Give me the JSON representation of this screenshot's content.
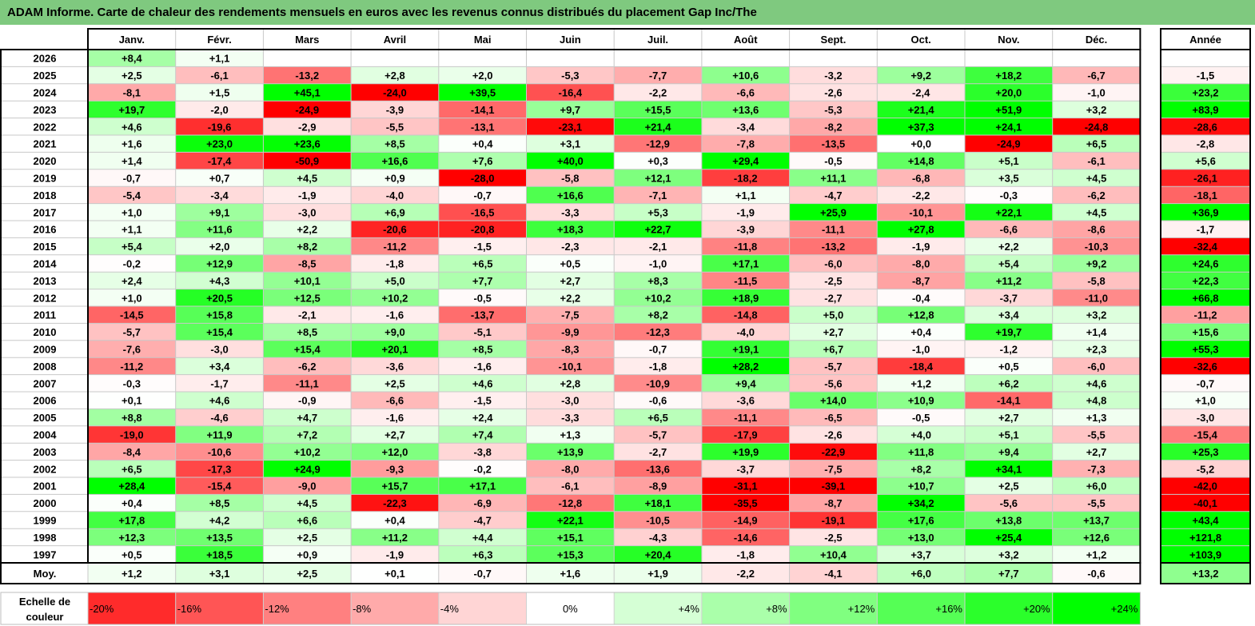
{
  "title": "ADAM Informe. Carte de chaleur des rendements mensuels en euros avec les revenus connus distribués du placement Gap Inc/The",
  "chart_data": {
    "type": "heatmap",
    "title": "ADAM Informe. Carte de chaleur des rendements mensuels en euros avec les revenus connus distribués du placement Gap Inc/The",
    "months": [
      "Janv.",
      "Févr.",
      "Mars",
      "Avril",
      "Mai",
      "Juin",
      "Juil.",
      "Août",
      "Sept.",
      "Oct.",
      "Nov.",
      "Déc."
    ],
    "year_header": "Année",
    "rows": [
      {
        "year": "2026",
        "values": [
          "+8,4",
          "+1,1",
          "",
          "",
          "",
          "",
          "",
          "",
          "",
          "",
          "",
          ""
        ],
        "annual": ""
      },
      {
        "year": "2025",
        "values": [
          "+2,5",
          "-6,1",
          "-13,2",
          "+2,8",
          "+2,0",
          "-5,3",
          "-7,7",
          "+10,6",
          "-3,2",
          "+9,2",
          "+18,2",
          "-6,7"
        ],
        "annual": "-1,5"
      },
      {
        "year": "2024",
        "values": [
          "-8,1",
          "+1,5",
          "+45,1",
          "-24,0",
          "+39,5",
          "-16,4",
          "-2,2",
          "-6,6",
          "-2,6",
          "-2,4",
          "+20,0",
          "-1,0"
        ],
        "annual": "+23,2"
      },
      {
        "year": "2023",
        "values": [
          "+19,7",
          "-2,0",
          "-24,9",
          "-3,9",
          "-14,1",
          "+9,7",
          "+15,5",
          "+13,6",
          "-5,3",
          "+21,4",
          "+51,9",
          "+3,2"
        ],
        "annual": "+83,9"
      },
      {
        "year": "2022",
        "values": [
          "+4,6",
          "-19,6",
          "-2,9",
          "-5,5",
          "-13,1",
          "-23,1",
          "+21,4",
          "-3,4",
          "-8,2",
          "+37,3",
          "+24,1",
          "-24,8"
        ],
        "annual": "-28,6"
      },
      {
        "year": "2021",
        "values": [
          "+1,6",
          "+23,0",
          "+23,6",
          "+8,5",
          "+0,4",
          "+3,1",
          "-12,9",
          "-7,8",
          "-13,5",
          "+0,0",
          "-24,9",
          "+6,5"
        ],
        "annual": "-2,8"
      },
      {
        "year": "2020",
        "values": [
          "+1,4",
          "-17,4",
          "-50,9",
          "+16,6",
          "+7,6",
          "+40,0",
          "+0,3",
          "+29,4",
          "-0,5",
          "+14,8",
          "+5,1",
          "-6,1"
        ],
        "annual": "+5,6"
      },
      {
        "year": "2019",
        "values": [
          "-0,7",
          "+0,7",
          "+4,5",
          "+0,9",
          "-28,0",
          "-5,8",
          "+12,1",
          "-18,2",
          "+11,1",
          "-6,8",
          "+3,5",
          "+4,5"
        ],
        "annual": "-26,1"
      },
      {
        "year": "2018",
        "values": [
          "-5,4",
          "-3,4",
          "-1,9",
          "-4,0",
          "-0,7",
          "+16,6",
          "-7,1",
          "+1,1",
          "-4,7",
          "-2,2",
          "-0,3",
          "-6,2"
        ],
        "annual": "-18,1"
      },
      {
        "year": "2017",
        "values": [
          "+1,0",
          "+9,1",
          "-3,0",
          "+6,9",
          "-16,5",
          "-3,3",
          "+5,3",
          "-1,9",
          "+25,9",
          "-10,1",
          "+22,1",
          "+4,5"
        ],
        "annual": "+36,9"
      },
      {
        "year": "2016",
        "values": [
          "+1,1",
          "+11,6",
          "+2,2",
          "-20,6",
          "-20,8",
          "+18,3",
          "+22,7",
          "-3,9",
          "-11,1",
          "+27,8",
          "-6,6",
          "-8,6"
        ],
        "annual": "-1,7"
      },
      {
        "year": "2015",
        "values": [
          "+5,4",
          "+2,0",
          "+8,2",
          "-11,2",
          "-1,5",
          "-2,3",
          "-2,1",
          "-11,8",
          "-13,2",
          "-1,9",
          "+2,2",
          "-10,3"
        ],
        "annual": "-32,4"
      },
      {
        "year": "2014",
        "values": [
          "-0,2",
          "+12,9",
          "-8,5",
          "-1,8",
          "+6,5",
          "+0,5",
          "-1,0",
          "+17,1",
          "-6,0",
          "-8,0",
          "+5,4",
          "+9,2"
        ],
        "annual": "+24,6"
      },
      {
        "year": "2013",
        "values": [
          "+2,4",
          "+4,3",
          "+10,1",
          "+5,0",
          "+7,7",
          "+2,7",
          "+8,3",
          "-11,5",
          "-2,5",
          "-8,7",
          "+11,2",
          "-5,8"
        ],
        "annual": "+22,3"
      },
      {
        "year": "2012",
        "values": [
          "+1,0",
          "+20,5",
          "+12,5",
          "+10,2",
          "-0,5",
          "+2,2",
          "+10,2",
          "+18,9",
          "-2,7",
          "-0,4",
          "-3,7",
          "-11,0"
        ],
        "annual": "+66,8"
      },
      {
        "year": "2011",
        "values": [
          "-14,5",
          "+15,8",
          "-2,1",
          "-1,6",
          "-13,7",
          "-7,5",
          "+8,2",
          "-14,8",
          "+5,0",
          "+12,8",
          "+3,4",
          "+3,2"
        ],
        "annual": "-11,2"
      },
      {
        "year": "2010",
        "values": [
          "-5,7",
          "+15,4",
          "+8,5",
          "+9,0",
          "-5,1",
          "-9,9",
          "-12,3",
          "-4,0",
          "+2,7",
          "+0,4",
          "+19,7",
          "+1,4"
        ],
        "annual": "+15,6"
      },
      {
        "year": "2009",
        "values": [
          "-7,6",
          "-3,0",
          "+15,4",
          "+20,1",
          "+8,5",
          "-8,3",
          "-0,7",
          "+19,1",
          "+6,7",
          "-1,0",
          "-1,2",
          "+2,3"
        ],
        "annual": "+55,3"
      },
      {
        "year": "2008",
        "values": [
          "-11,2",
          "+3,4",
          "-6,2",
          "-3,6",
          "-1,6",
          "-10,1",
          "-1,8",
          "+28,2",
          "-5,7",
          "-18,4",
          "+0,5",
          "-6,0"
        ],
        "annual": "-32,6"
      },
      {
        "year": "2007",
        "values": [
          "-0,3",
          "-1,7",
          "-11,1",
          "+2,5",
          "+4,6",
          "+2,8",
          "-10,9",
          "+9,4",
          "-5,6",
          "+1,2",
          "+6,2",
          "+4,6"
        ],
        "annual": "-0,7"
      },
      {
        "year": "2006",
        "values": [
          "+0,1",
          "+4,6",
          "-0,9",
          "-6,6",
          "-1,5",
          "-3,0",
          "-0,6",
          "-3,6",
          "+14,0",
          "+10,9",
          "-14,1",
          "+4,8"
        ],
        "annual": "+1,0"
      },
      {
        "year": "2005",
        "values": [
          "+8,8",
          "-4,6",
          "+4,7",
          "-1,6",
          "+2,4",
          "-3,3",
          "+6,5",
          "-11,1",
          "-6,5",
          "-0,5",
          "+2,7",
          "+1,3"
        ],
        "annual": "-3,0"
      },
      {
        "year": "2004",
        "values": [
          "-19,0",
          "+11,9",
          "+7,2",
          "+2,7",
          "+7,4",
          "+1,3",
          "-5,7",
          "-17,9",
          "-2,6",
          "+4,0",
          "+5,1",
          "-5,5"
        ],
        "annual": "-15,4"
      },
      {
        "year": "2003",
        "values": [
          "-8,4",
          "-10,6",
          "+10,2",
          "+12,0",
          "-3,8",
          "+13,9",
          "-2,7",
          "+19,9",
          "-22,9",
          "+11,8",
          "+9,4",
          "+2,7"
        ],
        "annual": "+25,3"
      },
      {
        "year": "2002",
        "values": [
          "+6,5",
          "-17,3",
          "+24,9",
          "-9,3",
          "-0,2",
          "-8,0",
          "-13,6",
          "-3,7",
          "-7,5",
          "+8,2",
          "+34,1",
          "-7,3"
        ],
        "annual": "-5,2"
      },
      {
        "year": "2001",
        "values": [
          "+28,4",
          "-15,4",
          "-9,0",
          "+15,7",
          "+17,1",
          "-6,1",
          "-8,9",
          "-31,1",
          "-39,1",
          "+10,7",
          "+2,5",
          "+6,0"
        ],
        "annual": "-42,0"
      },
      {
        "year": "2000",
        "values": [
          "+0,4",
          "+8,5",
          "+4,5",
          "-22,3",
          "-6,9",
          "-12,8",
          "+18,1",
          "-35,5",
          "-8,7",
          "+34,2",
          "-5,6",
          "-5,5"
        ],
        "annual": "-40,1"
      },
      {
        "year": "1999",
        "values": [
          "+17,8",
          "+4,2",
          "+6,6",
          "+0,4",
          "-4,7",
          "+22,1",
          "-10,5",
          "-14,9",
          "-19,1",
          "+17,6",
          "+13,8",
          "+13,7"
        ],
        "annual": "+43,4"
      },
      {
        "year": "1998",
        "values": [
          "+12,3",
          "+13,5",
          "+2,5",
          "+11,2",
          "+4,4",
          "+15,1",
          "-4,3",
          "-14,6",
          "-2,5",
          "+13,0",
          "+25,4",
          "+12,6"
        ],
        "annual": "+121,8"
      },
      {
        "year": "1997",
        "values": [
          "+0,5",
          "+18,5",
          "+0,9",
          "-1,9",
          "+6,3",
          "+15,3",
          "+20,4",
          "-1,8",
          "+10,4",
          "+3,7",
          "+3,2",
          "+1,2"
        ],
        "annual": "+103,9"
      }
    ],
    "average": {
      "label": "Moy.",
      "values": [
        "+1,2",
        "+3,1",
        "+2,5",
        "+0,1",
        "-0,7",
        "+1,6",
        "+1,9",
        "-2,2",
        "-4,1",
        "+6,0",
        "+7,7",
        "-0,6"
      ],
      "annual": "+13,2"
    },
    "scale": {
      "label_line1": "Echelle de",
      "label_line2": "couleur",
      "steps": [
        "-20%",
        "-16%",
        "-12%",
        "-8%",
        "-4%",
        "0%",
        "+4%",
        "+8%",
        "+12%",
        "+16%",
        "+20%",
        "+24%"
      ]
    },
    "colors": {
      "neg_max": "#ff0000",
      "pos_max": "#00ff00",
      "neutral": "#ffffff",
      "title_bg": "#7fc97f"
    }
  }
}
